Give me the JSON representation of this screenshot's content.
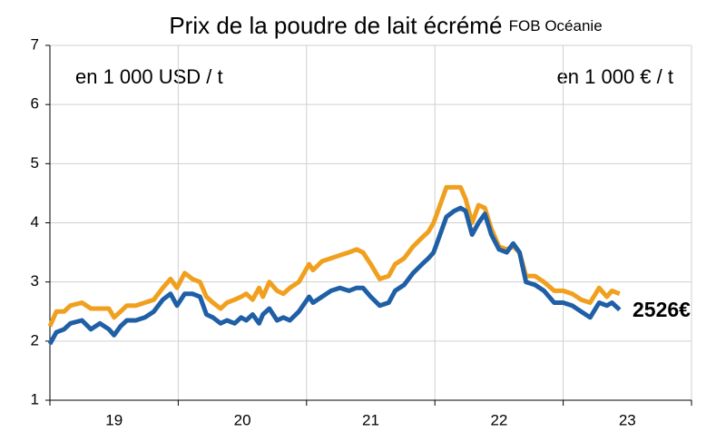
{
  "chart_data": {
    "type": "line",
    "title": "Prix de la poudre de lait écrémé",
    "subtitle": "FOB Océanie",
    "annotation": "2526€",
    "x": [
      2019.0,
      2019.05,
      2019.11,
      2019.16,
      2019.25,
      2019.32,
      2019.39,
      2019.46,
      2019.5,
      2019.55,
      2019.6,
      2019.67,
      2019.74,
      2019.81,
      2019.88,
      2019.94,
      2019.99,
      2020.05,
      2020.11,
      2020.17,
      2020.22,
      2020.27,
      2020.33,
      2020.38,
      2020.44,
      2020.49,
      2020.53,
      2020.58,
      2020.63,
      2020.66,
      2020.71,
      2020.77,
      2020.82,
      2020.87,
      2020.94,
      2021.02,
      2021.05,
      2021.12,
      2021.19,
      2021.26,
      2021.33,
      2021.39,
      2021.44,
      2021.5,
      2021.57,
      2021.64,
      2021.69,
      2021.76,
      2021.83,
      2021.9,
      2021.95,
      2021.99,
      2022.04,
      2022.09,
      2022.15,
      2022.2,
      2022.24,
      2022.29,
      2022.34,
      2022.39,
      2022.44,
      2022.5,
      2022.56,
      2022.61,
      2022.66,
      2022.71,
      2022.78,
      2022.85,
      2022.93,
      2023.0,
      2023.07,
      2023.14,
      2023.21,
      2023.28,
      2023.34,
      2023.38,
      2023.44
    ],
    "series": [
      {
        "name": "en 1 000 USD / t",
        "color": "#F0A01E",
        "values": [
          2.25,
          2.5,
          2.5,
          2.6,
          2.65,
          2.55,
          2.55,
          2.55,
          2.4,
          2.5,
          2.6,
          2.6,
          2.65,
          2.7,
          2.9,
          3.05,
          2.9,
          3.15,
          3.05,
          3.0,
          2.75,
          2.65,
          2.55,
          2.65,
          2.7,
          2.75,
          2.8,
          2.7,
          2.9,
          2.75,
          3.0,
          2.85,
          2.8,
          2.9,
          3.0,
          3.3,
          3.2,
          3.35,
          3.4,
          3.45,
          3.5,
          3.55,
          3.5,
          3.3,
          3.05,
          3.1,
          3.3,
          3.4,
          3.6,
          3.75,
          3.85,
          4.0,
          4.3,
          4.6,
          4.6,
          4.6,
          4.4,
          4.0,
          4.3,
          4.25,
          3.9,
          3.6,
          3.55,
          3.6,
          3.5,
          3.1,
          3.1,
          3.0,
          2.85,
          2.85,
          2.8,
          2.7,
          2.65,
          2.9,
          2.75,
          2.85,
          2.8
        ]
      },
      {
        "name": "en 1 000 € / t",
        "color": "#1F5FA6",
        "values": [
          1.95,
          2.15,
          2.2,
          2.3,
          2.35,
          2.2,
          2.3,
          2.2,
          2.1,
          2.25,
          2.35,
          2.35,
          2.4,
          2.5,
          2.7,
          2.8,
          2.6,
          2.8,
          2.8,
          2.75,
          2.45,
          2.4,
          2.3,
          2.35,
          2.3,
          2.4,
          2.35,
          2.45,
          2.3,
          2.45,
          2.55,
          2.35,
          2.4,
          2.35,
          2.5,
          2.75,
          2.65,
          2.75,
          2.85,
          2.9,
          2.85,
          2.9,
          2.9,
          2.75,
          2.6,
          2.65,
          2.85,
          2.95,
          3.15,
          3.3,
          3.4,
          3.5,
          3.8,
          4.1,
          4.2,
          4.25,
          4.2,
          3.8,
          4.0,
          4.15,
          3.8,
          3.55,
          3.5,
          3.65,
          3.5,
          3.0,
          2.95,
          2.85,
          2.65,
          2.65,
          2.6,
          2.5,
          2.4,
          2.65,
          2.6,
          2.65,
          2.53
        ]
      }
    ],
    "xlim": [
      2019,
      2024
    ],
    "xticks": [
      {
        "value": 2019.5,
        "label": "19"
      },
      {
        "value": 2020.5,
        "label": "20"
      },
      {
        "value": 2021.5,
        "label": "21"
      },
      {
        "value": 2022.5,
        "label": "22"
      },
      {
        "value": 2023.5,
        "label": "23"
      }
    ],
    "xgrid": [
      2019,
      2020,
      2021,
      2022,
      2023,
      2024
    ],
    "ylim": [
      1,
      7
    ],
    "yticks": [
      1,
      2,
      3,
      4,
      5,
      6,
      7
    ],
    "grid": true
  }
}
